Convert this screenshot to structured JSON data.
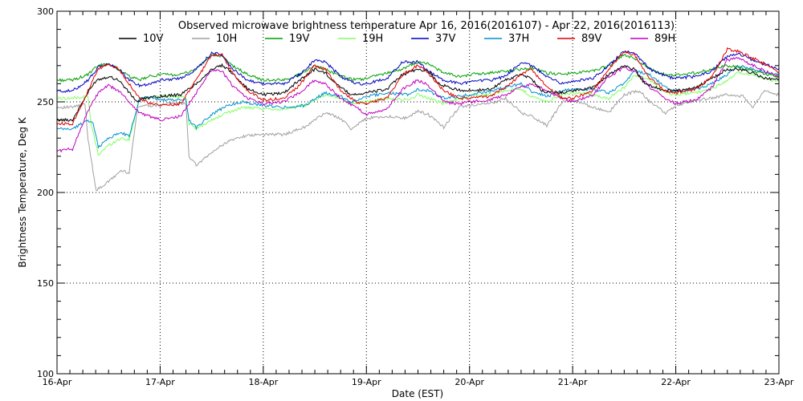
{
  "chart_data": {
    "type": "line",
    "title": "Observed microwave brightness temperature Apr 16, 2016(2016107) - Apr 22, 2016(2016113)",
    "xlabel": "Date (EST)",
    "ylabel": "Brightness Temperature, Deg K",
    "xlim": [
      0,
      7
    ],
    "ylim": [
      100,
      300
    ],
    "x_ticks": [
      {
        "pos": 0,
        "label": "16-Apr"
      },
      {
        "pos": 1,
        "label": "17-Apr"
      },
      {
        "pos": 2,
        "label": "18-Apr"
      },
      {
        "pos": 3,
        "label": "19-Apr"
      },
      {
        "pos": 4,
        "label": "20-Apr"
      },
      {
        "pos": 5,
        "label": "21-Apr"
      },
      {
        "pos": 6,
        "label": "22-Apr"
      },
      {
        "pos": 7,
        "label": "23-Apr"
      }
    ],
    "y_ticks": [
      100,
      150,
      200,
      250,
      300
    ],
    "grid": true,
    "legend_position": "top",
    "series": [
      {
        "name": "10V",
        "color": "#000000",
        "x": [
          0,
          0.15,
          0.3,
          0.38,
          0.5,
          0.6,
          0.7,
          0.78,
          0.85,
          1.0,
          1.2,
          1.35,
          1.5,
          1.6,
          1.7,
          1.85,
          2.0,
          2.2,
          2.35,
          2.5,
          2.6,
          2.75,
          2.85,
          3.0,
          3.2,
          3.35,
          3.5,
          3.6,
          3.7,
          3.85,
          4.0,
          4.2,
          4.35,
          4.5,
          4.6,
          4.7,
          4.85,
          5.0,
          5.2,
          5.35,
          5.5,
          5.6,
          5.7,
          5.85,
          6.0,
          6.2,
          6.35,
          6.5,
          6.6,
          6.75,
          6.85,
          7.0
        ],
        "y": [
          240,
          240,
          255,
          262,
          264,
          262,
          255,
          250,
          252,
          253,
          254,
          260,
          268,
          270,
          266,
          257,
          254,
          255,
          262,
          268,
          266,
          258,
          254,
          255,
          257,
          265,
          268,
          267,
          260,
          257,
          256,
          257,
          262,
          265,
          263,
          256,
          255,
          256,
          258,
          265,
          270,
          268,
          260,
          257,
          256,
          258,
          263,
          268,
          268,
          266,
          263,
          262
        ]
      },
      {
        "name": "10H",
        "color": "#a0a0a0",
        "x": [
          0,
          0.15,
          0.27,
          0.3,
          0.38,
          0.5,
          0.62,
          0.7,
          0.78,
          0.85,
          0.95,
          1.05,
          1.15,
          1.25,
          1.28,
          1.35,
          1.5,
          1.65,
          1.8,
          2.0,
          2.2,
          2.4,
          2.6,
          2.75,
          2.85,
          3.0,
          3.2,
          3.4,
          3.5,
          3.6,
          3.75,
          3.9,
          4.0,
          4.2,
          4.35,
          4.5,
          4.6,
          4.75,
          4.9,
          5.0,
          5.2,
          5.35,
          5.5,
          5.65,
          5.75,
          5.9,
          6.0,
          6.2,
          6.35,
          6.5,
          6.65,
          6.75,
          6.85,
          7.0
        ],
        "y": [
          247,
          247,
          249,
          230,
          201,
          206,
          212,
          211,
          247,
          248,
          248,
          249,
          249,
          249,
          220,
          215,
          222,
          228,
          231,
          232,
          232,
          236,
          244,
          241,
          235,
          241,
          242,
          241,
          245,
          243,
          236,
          247,
          248,
          249,
          252,
          244,
          242,
          237,
          250,
          251,
          247,
          244,
          254,
          256,
          250,
          244,
          248,
          251,
          252,
          254,
          253,
          247,
          256,
          254
        ]
      },
      {
        "name": "19V",
        "color": "#00a000",
        "x": [
          0,
          0.15,
          0.3,
          0.4,
          0.5,
          0.6,
          0.7,
          0.8,
          0.9,
          1.0,
          1.2,
          1.35,
          1.5,
          1.6,
          1.7,
          1.85,
          2.0,
          2.2,
          2.35,
          2.5,
          2.6,
          2.75,
          2.9,
          3.0,
          3.2,
          3.35,
          3.5,
          3.6,
          3.75,
          3.9,
          4.0,
          4.2,
          4.35,
          4.5,
          4.6,
          4.75,
          4.9,
          5.0,
          5.2,
          5.35,
          5.5,
          5.6,
          5.75,
          5.9,
          6.0,
          6.2,
          6.35,
          6.5,
          6.6,
          6.75,
          6.9,
          7.0
        ],
        "y": [
          262,
          262,
          265,
          270,
          271,
          268,
          264,
          262,
          264,
          265,
          265,
          268,
          276,
          275,
          270,
          265,
          262,
          262,
          265,
          270,
          268,
          264,
          262,
          263,
          266,
          268,
          272,
          271,
          266,
          264,
          265,
          266,
          267,
          268,
          269,
          266,
          265,
          266,
          267,
          270,
          276,
          274,
          268,
          265,
          265,
          266,
          268,
          270,
          269,
          267,
          265,
          264
        ]
      },
      {
        "name": "19H",
        "color": "#80ff60",
        "x": [
          0,
          0.15,
          0.3,
          0.33,
          0.4,
          0.5,
          0.62,
          0.7,
          0.8,
          0.85,
          0.95,
          1.05,
          1.15,
          1.25,
          1.28,
          1.35,
          1.5,
          1.65,
          1.8,
          2.0,
          2.2,
          2.4,
          2.6,
          2.75,
          2.85,
          3.0,
          3.2,
          3.4,
          3.5,
          3.6,
          3.75,
          3.9,
          4.0,
          4.2,
          4.35,
          4.5,
          4.6,
          4.75,
          4.9,
          5.0,
          5.2,
          5.35,
          5.5,
          5.6,
          5.75,
          5.9,
          6.0,
          6.2,
          6.35,
          6.5,
          6.6,
          6.75,
          6.9,
          7.0
        ],
        "y": [
          252,
          252,
          253,
          238,
          221,
          226,
          230,
          229,
          252,
          252,
          253,
          253,
          253,
          253,
          238,
          235,
          240,
          244,
          247,
          246,
          246,
          248,
          254,
          252,
          249,
          250,
          252,
          251,
          254,
          252,
          249,
          252,
          253,
          254,
          256,
          257,
          253,
          250,
          254,
          255,
          254,
          252,
          258,
          265,
          262,
          255,
          254,
          255,
          257,
          262,
          266,
          265,
          262,
          262
        ]
      },
      {
        "name": "37V",
        "color": "#0000c0",
        "x": [
          0,
          0.15,
          0.3,
          0.4,
          0.5,
          0.6,
          0.7,
          0.8,
          0.9,
          1.0,
          1.2,
          1.35,
          1.5,
          1.6,
          1.7,
          1.85,
          2.0,
          2.2,
          2.35,
          2.5,
          2.6,
          2.75,
          2.9,
          3.0,
          3.2,
          3.35,
          3.5,
          3.6,
          3.75,
          3.9,
          4.0,
          4.2,
          4.35,
          4.5,
          4.6,
          4.75,
          4.9,
          5.0,
          5.2,
          5.35,
          5.5,
          5.6,
          5.75,
          5.9,
          6.0,
          6.2,
          6.35,
          6.5,
          6.6,
          6.75,
          6.9,
          7.0
        ],
        "y": [
          256,
          256,
          262,
          269,
          271,
          268,
          262,
          259,
          260,
          262,
          263,
          268,
          277,
          276,
          268,
          262,
          260,
          260,
          265,
          273,
          272,
          264,
          260,
          260,
          263,
          272,
          272,
          267,
          262,
          260,
          261,
          262,
          264,
          272,
          270,
          264,
          260,
          261,
          263,
          270,
          278,
          277,
          268,
          264,
          263,
          264,
          267,
          275,
          277,
          273,
          270,
          268
        ]
      },
      {
        "name": "37H",
        "color": "#0090d0",
        "x": [
          0,
          0.15,
          0.3,
          0.35,
          0.4,
          0.5,
          0.62,
          0.7,
          0.8,
          0.85,
          0.95,
          1.05,
          1.15,
          1.25,
          1.28,
          1.35,
          1.5,
          1.65,
          1.8,
          2.0,
          2.2,
          2.4,
          2.6,
          2.75,
          2.85,
          3.0,
          3.2,
          3.4,
          3.5,
          3.6,
          3.75,
          3.9,
          4.0,
          4.2,
          4.35,
          4.5,
          4.6,
          4.75,
          4.9,
          5.0,
          5.2,
          5.35,
          5.5,
          5.6,
          5.75,
          5.9,
          6.0,
          6.2,
          6.35,
          6.5,
          6.6,
          6.75,
          6.9,
          7.0
        ],
        "y": [
          235,
          235,
          240,
          238,
          225,
          230,
          233,
          231,
          252,
          253,
          252,
          251,
          251,
          251,
          240,
          236,
          243,
          248,
          250,
          248,
          247,
          248,
          255,
          253,
          250,
          253,
          255,
          254,
          257,
          256,
          252,
          253,
          254,
          256,
          258,
          260,
          256,
          253,
          256,
          257,
          257,
          255,
          260,
          267,
          265,
          258,
          256,
          257,
          260,
          265,
          270,
          268,
          266,
          265
        ]
      },
      {
        "name": "89V",
        "color": "#e00000",
        "x": [
          0,
          0.15,
          0.3,
          0.4,
          0.5,
          0.6,
          0.7,
          0.8,
          0.9,
          1.0,
          1.2,
          1.35,
          1.5,
          1.6,
          1.7,
          1.85,
          2.0,
          2.2,
          2.35,
          2.5,
          2.6,
          2.75,
          2.9,
          3.0,
          3.2,
          3.35,
          3.5,
          3.6,
          3.75,
          3.9,
          4.0,
          4.2,
          4.35,
          4.5,
          4.6,
          4.75,
          4.9,
          5.0,
          5.2,
          5.35,
          5.5,
          5.6,
          5.75,
          5.9,
          6.0,
          6.2,
          6.35,
          6.5,
          6.6,
          6.75,
          6.9,
          7.0
        ],
        "y": [
          238,
          238,
          256,
          268,
          271,
          268,
          260,
          252,
          249,
          248,
          249,
          262,
          276,
          276,
          266,
          256,
          251,
          252,
          259,
          270,
          268,
          256,
          250,
          249,
          252,
          265,
          270,
          266,
          256,
          252,
          252,
          253,
          258,
          265,
          268,
          258,
          252,
          252,
          256,
          268,
          278,
          276,
          263,
          256,
          255,
          257,
          264,
          279,
          278,
          274,
          270,
          266
        ]
      },
      {
        "name": "89H",
        "color": "#c000c0",
        "x": [
          0,
          0.15,
          0.3,
          0.4,
          0.5,
          0.6,
          0.7,
          0.8,
          0.9,
          1.0,
          1.2,
          1.35,
          1.5,
          1.6,
          1.7,
          1.85,
          2.0,
          2.2,
          2.35,
          2.5,
          2.6,
          2.75,
          2.9,
          3.0,
          3.2,
          3.35,
          3.5,
          3.6,
          3.75,
          3.9,
          4.0,
          4.2,
          4.35,
          4.5,
          4.6,
          4.75,
          4.9,
          5.0,
          5.2,
          5.35,
          5.5,
          5.6,
          5.75,
          5.9,
          6.0,
          6.2,
          6.35,
          6.5,
          6.6,
          6.75,
          6.9,
          7.0
        ],
        "y": [
          223,
          224,
          245,
          255,
          259,
          256,
          250,
          244,
          242,
          240,
          242,
          255,
          268,
          267,
          259,
          252,
          249,
          250,
          255,
          262,
          260,
          252,
          247,
          243,
          246,
          257,
          262,
          259,
          250,
          249,
          250,
          251,
          254,
          258,
          260,
          256,
          252,
          250,
          254,
          264,
          269,
          267,
          258,
          252,
          249,
          251,
          258,
          273,
          274,
          270,
          266,
          264
        ]
      }
    ]
  }
}
